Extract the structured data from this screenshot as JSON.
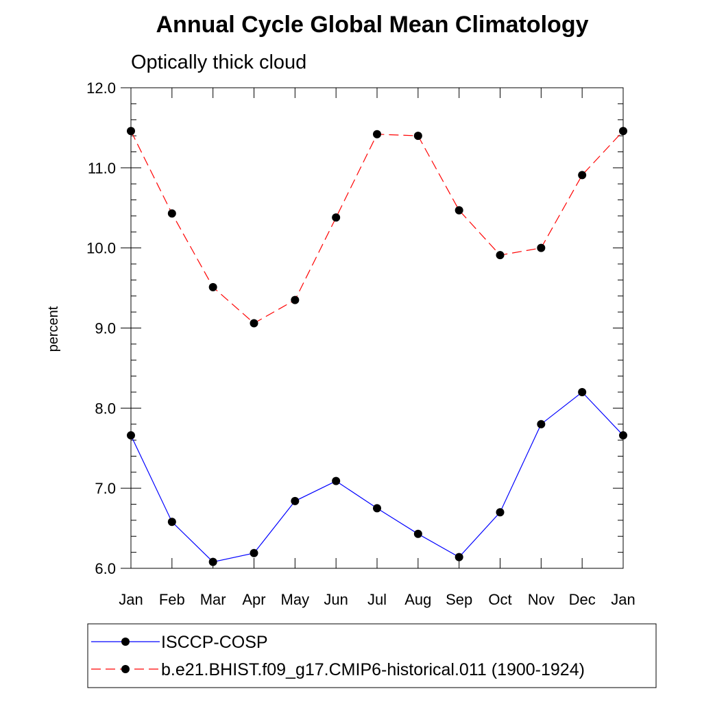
{
  "chart_data": {
    "type": "line",
    "title": "Annual Cycle Global Mean Climatology",
    "subtitle": "Optically thick cloud",
    "ylabel": "percent",
    "xlabel": "",
    "categories": [
      "Jan",
      "Feb",
      "Mar",
      "Apr",
      "May",
      "Jun",
      "Jul",
      "Aug",
      "Sep",
      "Oct",
      "Nov",
      "Dec",
      "Jan"
    ],
    "ylim": [
      6.0,
      12.0
    ],
    "yticks": [
      "6.0",
      "7.0",
      "8.0",
      "9.0",
      "10.0",
      "11.0",
      "12.0"
    ],
    "series": [
      {
        "name": "ISCCP-COSP",
        "color": "#0000ff",
        "dash": "solid",
        "values": [
          7.66,
          6.58,
          6.08,
          6.19,
          6.84,
          7.09,
          6.75,
          6.43,
          6.14,
          6.7,
          7.8,
          8.2,
          7.66
        ]
      },
      {
        "name": "b.e21.BHIST.f09_g17.CMIP6-historical.011 (1900-1924)",
        "color": "#ff0000",
        "dash": "dashed",
        "values": [
          11.46,
          10.43,
          9.51,
          9.06,
          9.35,
          10.38,
          11.42,
          11.4,
          10.47,
          9.91,
          10.0,
          10.91,
          11.46
        ]
      }
    ],
    "grid": false,
    "legend_position": "bottom"
  }
}
